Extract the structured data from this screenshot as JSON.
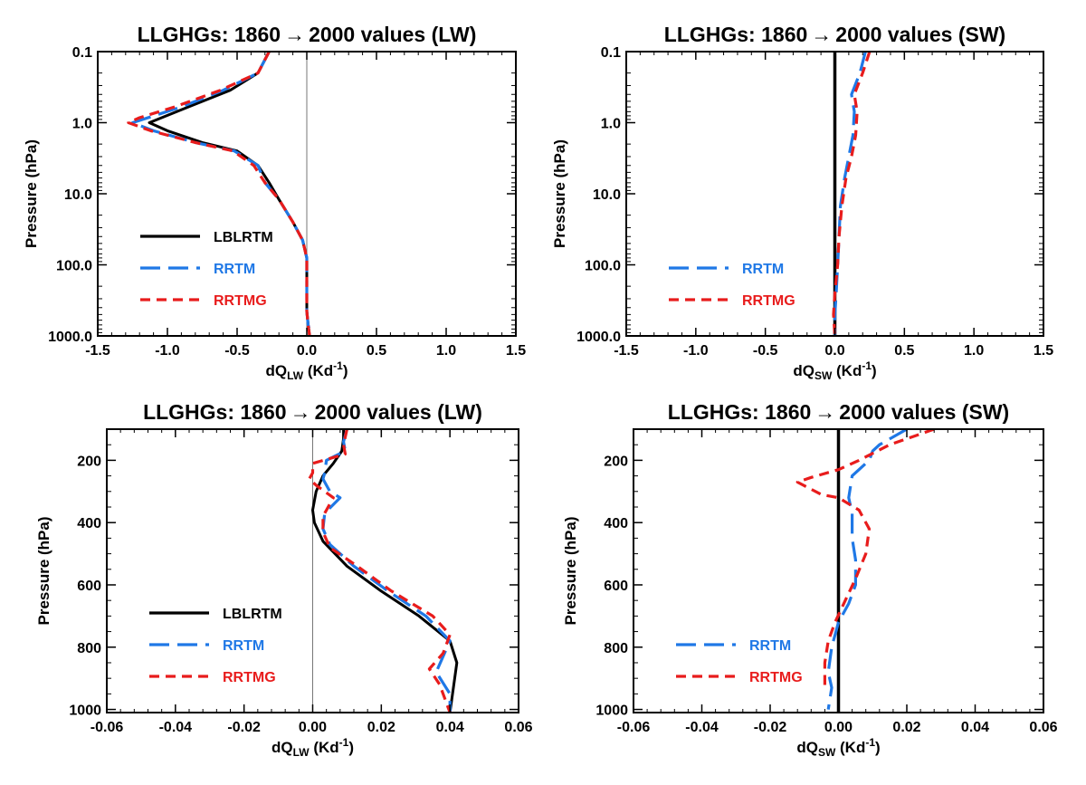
{
  "colors": {
    "LBLRTM": "#000000",
    "RRTM": "#1f78e6",
    "RRTMG": "#e81c1c",
    "zero_line_thin": "#777777",
    "zero_line_thick": "#000000"
  },
  "chart_data": [
    {
      "type": "line",
      "title_pre": "LLGHGs: 1860",
      "title_arrow": "→",
      "title_post": "2000 values (LW)",
      "xlabel_main": "dQ",
      "xlabel_sub": "LW",
      "xlabel_unit_pre": " (Kd",
      "xlabel_unit_sup": "-1",
      "xlabel_unit_post": ")",
      "ylabel": "Pressure (hPa)",
      "xlim": [
        -1.5,
        1.5
      ],
      "ylim": [
        1000,
        0.1
      ],
      "y_scale": "log",
      "grid": false,
      "zero_line": "thin",
      "x_ticks": [
        -1.5,
        -1.0,
        -0.5,
        0.0,
        0.5,
        1.0,
        1.5
      ],
      "x_tick_labels": [
        "-1.5",
        "-1.0",
        "-0.5",
        "0.0",
        "0.5",
        "1.0",
        "1.5"
      ],
      "y_ticks": [
        0.1,
        1,
        10,
        100,
        1000
      ],
      "y_tick_labels": [
        "0.1",
        "1.0",
        "10.0",
        "100.0",
        "1000.0"
      ],
      "legend": {
        "placement": "lower-left",
        "entries": [
          {
            "label": "LBLRTM",
            "series": "LBLRTM"
          },
          {
            "label": "RRTM",
            "series": "RRTM"
          },
          {
            "label": "RRTMG",
            "series": "RRTMG"
          }
        ]
      },
      "series": [
        {
          "name": "LBLRTM",
          "style": "solid",
          "points": [
            [
              -0.27,
              0.1
            ],
            [
              -0.35,
              0.2
            ],
            [
              -0.55,
              0.35
            ],
            [
              -0.85,
              0.6
            ],
            [
              -1.13,
              1.0
            ],
            [
              -1.0,
              1.3
            ],
            [
              -0.75,
              1.9
            ],
            [
              -0.5,
              2.5
            ],
            [
              -0.35,
              4
            ],
            [
              -0.27,
              7
            ],
            [
              -0.2,
              12
            ],
            [
              -0.1,
              25
            ],
            [
              -0.03,
              45
            ],
            [
              0.0,
              80
            ],
            [
              0.0,
              150
            ],
            [
              0.0,
              250
            ],
            [
              0.0,
              450
            ],
            [
              0.01,
              700
            ],
            [
              0.02,
              1000
            ]
          ]
        },
        {
          "name": "RRTM",
          "style": "dash",
          "points": [
            [
              -0.27,
              0.1
            ],
            [
              -0.35,
              0.2
            ],
            [
              -0.6,
              0.35
            ],
            [
              -0.9,
              0.6
            ],
            [
              -1.25,
              1.0
            ],
            [
              -1.1,
              1.3
            ],
            [
              -0.8,
              1.9
            ],
            [
              -0.52,
              2.5
            ],
            [
              -0.35,
              4
            ],
            [
              -0.3,
              7
            ],
            [
              -0.2,
              12
            ],
            [
              -0.1,
              25
            ],
            [
              -0.03,
              45
            ],
            [
              0.0,
              80
            ],
            [
              0.0,
              150
            ],
            [
              0.0,
              250
            ],
            [
              0.0,
              450
            ],
            [
              0.01,
              700
            ],
            [
              0.03,
              1000
            ]
          ]
        },
        {
          "name": "RRTMG",
          "style": "shortdash",
          "points": [
            [
              -0.27,
              0.1
            ],
            [
              -0.35,
              0.2
            ],
            [
              -0.62,
              0.35
            ],
            [
              -0.95,
              0.6
            ],
            [
              -1.2,
              0.85
            ],
            [
              -1.28,
              1.0
            ],
            [
              -1.12,
              1.3
            ],
            [
              -0.8,
              1.9
            ],
            [
              -0.53,
              2.5
            ],
            [
              -0.38,
              4
            ],
            [
              -0.3,
              7
            ],
            [
              -0.2,
              12
            ],
            [
              -0.1,
              25
            ],
            [
              -0.03,
              45
            ],
            [
              0.0,
              80
            ],
            [
              0.0,
              150
            ],
            [
              0.0,
              250
            ],
            [
              0.0,
              450
            ],
            [
              0.01,
              700
            ],
            [
              0.02,
              1000
            ]
          ]
        }
      ]
    },
    {
      "type": "line",
      "title_pre": "LLGHGs: 1860",
      "title_arrow": "→",
      "title_post": "2000 values (SW)",
      "xlabel_main": "dQ",
      "xlabel_sub": "SW",
      "xlabel_unit_pre": " (Kd",
      "xlabel_unit_sup": "-1",
      "xlabel_unit_post": ")",
      "ylabel": "Pressure (hPa)",
      "xlim": [
        -1.5,
        1.5
      ],
      "ylim": [
        1000,
        0.1
      ],
      "y_scale": "log",
      "grid": false,
      "zero_line": "thick",
      "x_ticks": [
        -1.5,
        -1.0,
        -0.5,
        0.0,
        0.5,
        1.0,
        1.5
      ],
      "x_tick_labels": [
        "-1.5",
        "-1.0",
        "-0.5",
        "0.0",
        "0.5",
        "1.0",
        "1.5"
      ],
      "y_ticks": [
        0.1,
        1,
        10,
        100,
        1000
      ],
      "y_tick_labels": [
        "0.1",
        "1.0",
        "10.0",
        "100.0",
        "1000.0"
      ],
      "legend": {
        "placement": "lower-left",
        "entries": [
          {
            "label": "RRTM",
            "series": "RRTM"
          },
          {
            "label": "RRTMG",
            "series": "RRTMG"
          }
        ]
      },
      "series": [
        {
          "name": "RRTM",
          "style": "dash",
          "points": [
            [
              0.22,
              0.1
            ],
            [
              0.18,
              0.2
            ],
            [
              0.12,
              0.4
            ],
            [
              0.14,
              0.7
            ],
            [
              0.13,
              1.5
            ],
            [
              0.1,
              3
            ],
            [
              0.07,
              6
            ],
            [
              0.04,
              15
            ],
            [
              0.03,
              40
            ],
            [
              0.02,
              100
            ],
            [
              0.01,
              250
            ],
            [
              0.0,
              500
            ],
            [
              0.0,
              1000
            ]
          ]
        },
        {
          "name": "RRTMG",
          "style": "shortdash",
          "points": [
            [
              0.25,
              0.1
            ],
            [
              0.2,
              0.2
            ],
            [
              0.14,
              0.4
            ],
            [
              0.16,
              0.7
            ],
            [
              0.15,
              1.5
            ],
            [
              0.12,
              3
            ],
            [
              0.08,
              6
            ],
            [
              0.05,
              15
            ],
            [
              0.03,
              40
            ],
            [
              0.02,
              100
            ],
            [
              0.0,
              250
            ],
            [
              -0.01,
              500
            ],
            [
              0.0,
              1000
            ]
          ]
        }
      ]
    },
    {
      "type": "line",
      "title_pre": "LLGHGs: 1860",
      "title_arrow": "→",
      "title_post": "2000 values (LW)",
      "xlabel_main": "dQ",
      "xlabel_sub": "LW",
      "xlabel_unit_pre": " (Kd",
      "xlabel_unit_sup": "-1",
      "xlabel_unit_post": ")",
      "ylabel": "Pressure (hPa)",
      "xlim": [
        -0.06,
        0.06
      ],
      "ylim": [
        1010,
        100
      ],
      "y_scale": "linear",
      "grid": false,
      "zero_line": "thin",
      "x_ticks": [
        -0.06,
        -0.04,
        -0.02,
        0.0,
        0.02,
        0.04,
        0.06
      ],
      "x_tick_labels": [
        "-0.06",
        "-0.04",
        "-0.02",
        "0.00",
        "0.02",
        "0.04",
        "0.06"
      ],
      "y_ticks": [
        200,
        400,
        600,
        800,
        1000
      ],
      "y_tick_labels": [
        "200",
        "400",
        "600",
        "800",
        "1000"
      ],
      "legend": {
        "placement": "lower-left",
        "entries": [
          {
            "label": "LBLRTM",
            "series": "LBLRTM"
          },
          {
            "label": "RRTM",
            "series": "RRTM"
          },
          {
            "label": "RRTMG",
            "series": "RRTMG"
          }
        ]
      },
      "series": [
        {
          "name": "LBLRTM",
          "style": "solid",
          "points": [
            [
              0.009,
              100
            ],
            [
              0.009,
              130
            ],
            [
              0.0085,
              170
            ],
            [
              0.006,
              210
            ],
            [
              0.003,
              250
            ],
            [
              0.001,
              300
            ],
            [
              0.0,
              360
            ],
            [
              0.0005,
              400
            ],
            [
              0.003,
              460
            ],
            [
              0.01,
              540
            ],
            [
              0.02,
              620
            ],
            [
              0.031,
              700
            ],
            [
              0.04,
              780
            ],
            [
              0.042,
              850
            ],
            [
              0.041,
              930
            ],
            [
              0.04,
              1010
            ]
          ]
        },
        {
          "name": "RRTM",
          "style": "dash",
          "points": [
            [
              0.01,
              100
            ],
            [
              0.009,
              140
            ],
            [
              0.0095,
              170
            ],
            [
              0.004,
              200
            ],
            [
              0.0035,
              240
            ],
            [
              0.003,
              260
            ],
            [
              0.005,
              300
            ],
            [
              0.008,
              320
            ],
            [
              0.0035,
              370
            ],
            [
              0.003,
              420
            ],
            [
              0.005,
              470
            ],
            [
              0.012,
              540
            ],
            [
              0.022,
              620
            ],
            [
              0.033,
              700
            ],
            [
              0.04,
              780
            ],
            [
              0.036,
              880
            ],
            [
              0.04,
              950
            ],
            [
              0.04,
              1010
            ]
          ]
        },
        {
          "name": "RRTMG",
          "style": "shortdash",
          "points": [
            [
              0.01,
              100
            ],
            [
              0.009,
              150
            ],
            [
              0.0095,
              180
            ],
            [
              0.0,
              210
            ],
            [
              0.0,
              240
            ],
            [
              -0.001,
              260
            ],
            [
              0.001,
              280
            ],
            [
              0.006,
              320
            ],
            [
              0.003,
              380
            ],
            [
              0.003,
              430
            ],
            [
              0.005,
              480
            ],
            [
              0.013,
              540
            ],
            [
              0.023,
              620
            ],
            [
              0.035,
              700
            ],
            [
              0.04,
              760
            ],
            [
              0.038,
              820
            ],
            [
              0.034,
              870
            ],
            [
              0.037,
              920
            ],
            [
              0.04,
              1010
            ]
          ]
        }
      ]
    },
    {
      "type": "line",
      "title_pre": "LLGHGs: 1860",
      "title_arrow": "→",
      "title_post": "2000 values (SW)",
      "xlabel_main": "dQ",
      "xlabel_sub": "SW",
      "xlabel_unit_pre": " (Kd",
      "xlabel_unit_sup": "-1",
      "xlabel_unit_post": ")",
      "ylabel": "Pressure (hPa)",
      "xlim": [
        -0.06,
        0.06
      ],
      "ylim": [
        1010,
        100
      ],
      "y_scale": "linear",
      "grid": false,
      "zero_line": "thick",
      "x_ticks": [
        -0.06,
        -0.04,
        -0.02,
        0.0,
        0.02,
        0.04,
        0.06
      ],
      "x_tick_labels": [
        "-0.06",
        "-0.04",
        "-0.02",
        "0.00",
        "0.02",
        "0.04",
        "0.06"
      ],
      "y_ticks": [
        200,
        400,
        600,
        800,
        1000
      ],
      "y_tick_labels": [
        "200",
        "400",
        "600",
        "800",
        "1000"
      ],
      "legend": {
        "placement": "lower-left",
        "entries": [
          {
            "label": "RRTM",
            "series": "RRTM"
          },
          {
            "label": "RRTMG",
            "series": "RRTMG"
          }
        ]
      },
      "series": [
        {
          "name": "RRTM",
          "style": "dash",
          "points": [
            [
              0.02,
              100
            ],
            [
              0.012,
              150
            ],
            [
              0.01,
              170
            ],
            [
              0.009,
              200
            ],
            [
              0.004,
              250
            ],
            [
              0.003,
              320
            ],
            [
              0.004,
              370
            ],
            [
              0.004,
              450
            ],
            [
              0.005,
              520
            ],
            [
              0.005,
              600
            ],
            [
              0.003,
              660
            ],
            [
              0.0,
              720
            ],
            [
              -0.002,
              800
            ],
            [
              -0.003,
              880
            ],
            [
              -0.002,
              930
            ],
            [
              -0.003,
              1000
            ]
          ]
        },
        {
          "name": "RRTMG",
          "style": "shortdash",
          "points": [
            [
              0.028,
              100
            ],
            [
              0.015,
              150
            ],
            [
              0.006,
              200
            ],
            [
              0.0,
              230
            ],
            [
              -0.008,
              255
            ],
            [
              -0.012,
              270
            ],
            [
              -0.005,
              310
            ],
            [
              0.0,
              320
            ],
            [
              0.006,
              360
            ],
            [
              0.009,
              420
            ],
            [
              0.008,
              500
            ],
            [
              0.005,
              580
            ],
            [
              0.002,
              650
            ],
            [
              -0.001,
              720
            ],
            [
              -0.003,
              780
            ],
            [
              -0.004,
              850
            ],
            [
              -0.004,
              930
            ]
          ]
        }
      ]
    }
  ]
}
